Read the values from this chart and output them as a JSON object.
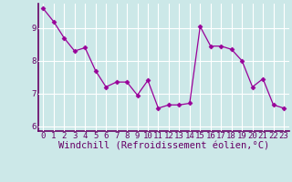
{
  "x": [
    0,
    1,
    2,
    3,
    4,
    5,
    6,
    7,
    8,
    9,
    10,
    11,
    12,
    13,
    14,
    15,
    16,
    17,
    18,
    19,
    20,
    21,
    22,
    23
  ],
  "y": [
    9.6,
    9.2,
    8.7,
    8.3,
    8.4,
    7.7,
    7.2,
    7.35,
    7.35,
    6.95,
    7.4,
    6.55,
    6.65,
    6.65,
    6.7,
    9.05,
    8.45,
    8.45,
    8.35,
    8.0,
    7.2,
    7.45,
    6.65,
    6.55
  ],
  "line_color": "#990099",
  "marker": "D",
  "marker_size": 2.5,
  "bg_color": "#cce8e8",
  "grid_color": "#ffffff",
  "xlabel": "Windchill (Refroidissement éolien,°C)",
  "xlim": [
    -0.5,
    23.5
  ],
  "ylim": [
    5.85,
    9.75
  ],
  "yticks": [
    6,
    7,
    8,
    9
  ],
  "xticks": [
    0,
    1,
    2,
    3,
    4,
    5,
    6,
    7,
    8,
    9,
    10,
    11,
    12,
    13,
    14,
    15,
    16,
    17,
    18,
    19,
    20,
    21,
    22,
    23
  ],
  "tick_fontsize": 6.5,
  "xlabel_fontsize": 7.5,
  "spine_color": "#660066",
  "label_color": "#660066"
}
